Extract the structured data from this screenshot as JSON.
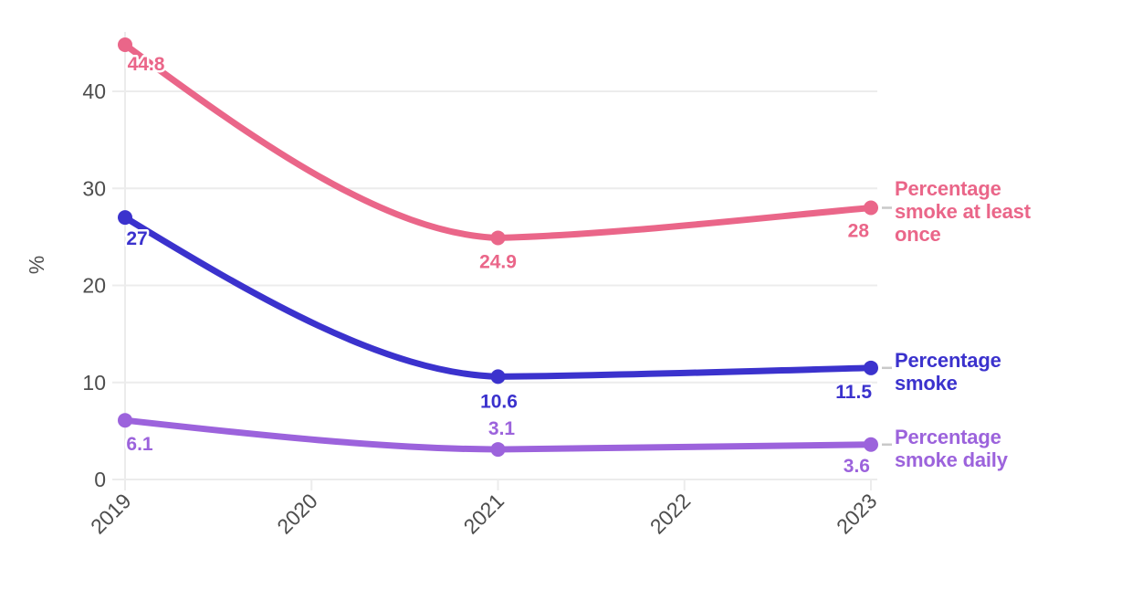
{
  "chart_data": {
    "type": "line",
    "title": "",
    "xlabel": "",
    "ylabel": "%",
    "x": [
      2019,
      2021,
      2023
    ],
    "x_axis_ticks": [
      "2019",
      "2020",
      "2021",
      "2022",
      "2023"
    ],
    "y_axis_ticks": [
      "0",
      "10",
      "20",
      "30",
      "40"
    ],
    "ylim": [
      0,
      45
    ],
    "grid": "horizontal",
    "legend_position": "right of line ends",
    "axis_text_color": "#4d4d4d",
    "gridline_color": "#ececec",
    "leader_dash_color": "#c9c9c9",
    "series": [
      {
        "name": "percentage-smoke-at-least-once",
        "legend_lines": [
          "Percentage",
          "smoke at least",
          "once"
        ],
        "color": "#ea6689",
        "values": [
          44.8,
          24.9,
          28
        ],
        "point_labels": [
          "44.8",
          "24.9",
          "28"
        ]
      },
      {
        "name": "percentage-smoke",
        "legend_lines": [
          "Percentage",
          "smoke"
        ],
        "color": "#3b32cd",
        "values": [
          27,
          10.6,
          11.5
        ],
        "point_labels": [
          "27",
          "10.6",
          "11.5"
        ]
      },
      {
        "name": "percentage-smoke-daily",
        "legend_lines": [
          "Percentage",
          "smoke daily"
        ],
        "color": "#9c63dc",
        "values": [
          6.1,
          3.1,
          3.6
        ],
        "point_labels": [
          "6.1",
          "3.1",
          "3.6"
        ]
      }
    ]
  }
}
